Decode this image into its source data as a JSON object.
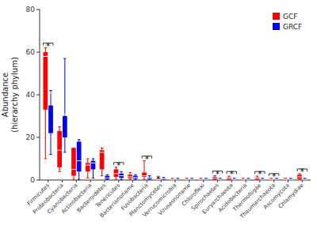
{
  "chart_data": {
    "type": "box",
    "ylabel": "Abundance\n(hierarchy phylum)",
    "categories": [
      "Firmicutes",
      "Proteobacteria",
      "Cyanobacteria",
      "Actinobacteria",
      "Bacteroidetes",
      "Tenericutes",
      "Bacterianoname",
      "Fusobacteria",
      "Planctomycetes",
      "Verrucomicrobia",
      "Virusesnoname",
      "Chloroflexi",
      "Spirochaetes",
      "Euryarchaeota",
      "Acidobacteria",
      "Thermofogae",
      "Thaumarchaeota",
      "Ascomycota",
      "Chlamydiae"
    ],
    "series": [
      {
        "name": "GCF",
        "color": "#FF0000",
        "median": [
          58,
          14,
          5,
          7,
          13,
          3,
          1.5,
          2,
          0.3,
          0.3,
          0.3,
          0.3,
          1.0,
          0.8,
          0.3,
          0.8,
          0.3,
          0.3,
          1.5
        ],
        "q1": [
          33,
          6,
          2,
          4,
          5,
          1.5,
          0.8,
          1.5,
          0.15,
          0.15,
          0.15,
          0.15,
          0.4,
          0.3,
          0.15,
          0.3,
          0.15,
          0.15,
          0.5
        ],
        "q3": [
          60,
          23,
          15,
          8,
          14,
          5,
          2.5,
          3.5,
          0.6,
          0.5,
          0.5,
          0.5,
          1.5,
          1.2,
          0.5,
          1.2,
          0.5,
          0.5,
          2.5
        ],
        "whisker_low": [
          10,
          4,
          0.3,
          1,
          2,
          0.3,
          0.2,
          0.3,
          0.05,
          0.05,
          0.05,
          0.05,
          0.1,
          0.1,
          0.05,
          0.1,
          0.05,
          0.05,
          0.1
        ],
        "whisker_high": [
          62,
          25,
          15,
          10,
          15,
          6,
          3.5,
          9,
          1.0,
          0.8,
          0.8,
          0.8,
          2.0,
          1.8,
          0.8,
          1.8,
          0.8,
          0.8,
          3.0
        ]
      },
      {
        "name": "GRCF",
        "color": "#0000FF",
        "median": [
          41,
          31,
          9,
          8,
          1.0,
          2,
          1.2,
          0.8,
          0.5,
          0.3,
          0.3,
          0.3,
          0.3,
          0.3,
          0.3,
          0.3,
          0.3,
          0.3,
          0.3
        ],
        "q1": [
          22,
          20,
          4,
          5,
          0.4,
          1.0,
          0.6,
          0.3,
          0.2,
          0.15,
          0.15,
          0.15,
          0.15,
          0.15,
          0.15,
          0.15,
          0.15,
          0.15,
          0.15
        ],
        "q3": [
          35,
          30,
          18,
          9,
          2.0,
          3.0,
          2.0,
          1.2,
          0.8,
          0.5,
          0.5,
          0.5,
          0.5,
          0.5,
          0.5,
          0.5,
          0.5,
          0.5,
          0.5
        ],
        "whisker_low": [
          12,
          13,
          0.3,
          1,
          0.05,
          0.2,
          0.15,
          0.05,
          0.05,
          0.05,
          0.05,
          0.05,
          0.05,
          0.05,
          0.05,
          0.05,
          0.05,
          0.05,
          0.05
        ],
        "whisker_high": [
          42,
          57,
          19,
          10,
          2.5,
          4.0,
          2.5,
          2.0,
          1.2,
          0.8,
          0.8,
          0.8,
          0.8,
          0.8,
          0.8,
          0.8,
          0.8,
          0.8,
          0.8
        ]
      }
    ],
    "annotations": [
      {
        "text": "*",
        "category": 0,
        "bracket": true
      },
      {
        "text": "*",
        "category": 5,
        "bracket": true
      },
      {
        "text": "*",
        "category": 7,
        "bracket": true
      },
      {
        "text": "*",
        "category": 8,
        "series": 0
      },
      {
        "text": "*",
        "category": 12,
        "bracket": true
      },
      {
        "text": "*",
        "category": 13,
        "bracket": true
      },
      {
        "text": "*",
        "category": 15,
        "bracket": true
      },
      {
        "text": "*",
        "category": 16,
        "bracket": true
      },
      {
        "text": "*",
        "category": 18,
        "bracket": true
      }
    ],
    "ylim": [
      0,
      80
    ],
    "yticks": [
      0,
      20,
      40,
      60,
      80
    ],
    "grid": false,
    "legend": "upper right"
  }
}
